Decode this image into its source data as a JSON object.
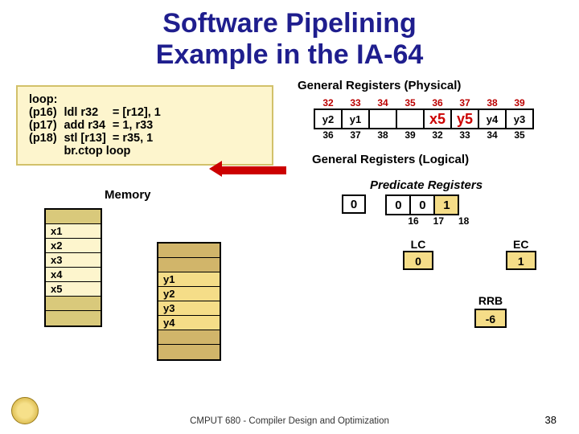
{
  "title_line1": "Software Pipelining",
  "title_line2": "Example in the IA-64",
  "code": {
    "rows": [
      {
        "tag": "loop:",
        "instr": "",
        "args": ""
      },
      {
        "tag": "(p16)",
        "instr": "ldl  r32",
        "args": "= [r12], 1"
      },
      {
        "tag": "(p17)",
        "instr": "add r34",
        "args": "= 1, r33"
      },
      {
        "tag": "(p18)",
        "instr": "stl [r13]",
        "args": "= r35, 1"
      },
      {
        "tag": "",
        "instr": "br.ctop loop",
        "args": ""
      }
    ]
  },
  "memory_label": "Memory",
  "mem_a": [
    "",
    "x1",
    "x2",
    "x3",
    "x4",
    "x5",
    "",
    ""
  ],
  "mem_b": [
    "",
    "",
    "y1",
    "y2",
    "y3",
    "y4",
    "",
    ""
  ],
  "general_phys_title": "General Registers (Physical)",
  "phys_top": [
    "32",
    "33",
    "34",
    "35",
    "36",
    "37",
    "38",
    "39"
  ],
  "phys_cells": [
    "y2",
    "y1",
    "",
    "",
    "x5",
    "y5",
    "y4",
    "y3"
  ],
  "phys_bottom": [
    "36",
    "37",
    "38",
    "39",
    "32",
    "33",
    "34",
    "35"
  ],
  "highlight_cells": [
    4,
    5
  ],
  "gen_log_title": "General Registers (Logical)",
  "pred_title": "Predicate Registers",
  "pred_zero": "0",
  "pred_cells": [
    "0",
    "0",
    "1"
  ],
  "pred_hl_index": 2,
  "pred_nums": [
    "16",
    "17",
    "18"
  ],
  "lc_label": "LC",
  "ec_label": "EC",
  "lc_val": "0",
  "ec_val": "1",
  "rrb_label": "RRB",
  "rrb_val": "-6",
  "footer": "CMPUT 680 - Compiler Design and Optimization",
  "slide_num": "38",
  "colors": {
    "title": "#1f1e8e",
    "codebox_bg": "#fdf5cd",
    "highlight_bg": "#f5dd88",
    "arrow": "#cc0000"
  }
}
